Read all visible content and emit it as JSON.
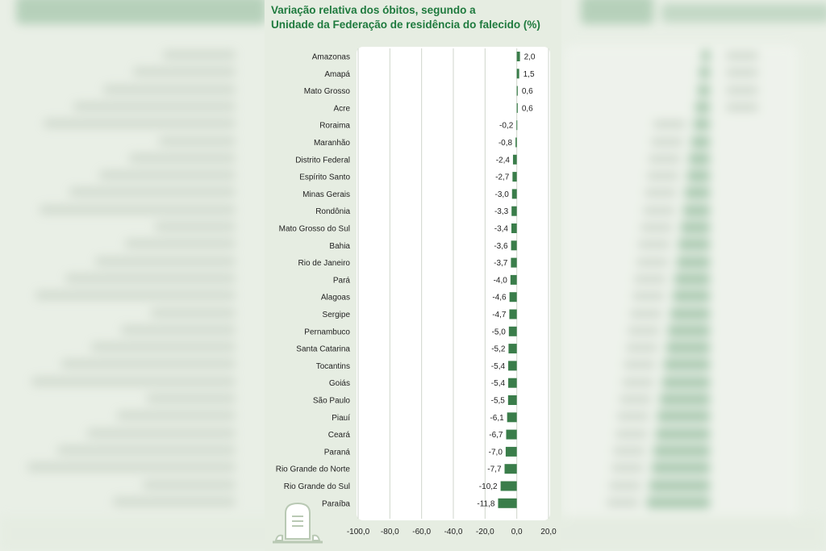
{
  "chart_data": {
    "type": "bar",
    "orientation": "horizontal",
    "title": "Variação relativa dos óbitos, segundo a Unidade da Federação de residência do falecido (%)",
    "title_lines": [
      "Variação relativa dos óbitos, segundo a",
      "Unidade da Federação de residência do falecido (%)"
    ],
    "categories": [
      "Amazonas",
      "Amapá",
      "Mato Grosso",
      "Acre",
      "Roraima",
      "Maranhão",
      "Distrito Federal",
      "Espírito Santo",
      "Minas Gerais",
      "Rondônia",
      "Mato Grosso do Sul",
      "Bahia",
      "Rio de Janeiro",
      "Pará",
      "Alagoas",
      "Sergipe",
      "Pernambuco",
      "Santa Catarina",
      "Tocantins",
      "Goiás",
      "São Paulo",
      "Piauí",
      "Ceará",
      "Paraná",
      "Rio Grande do Norte",
      "Rio Grande do Sul",
      "Paraíba"
    ],
    "values": [
      2.0,
      1.5,
      0.6,
      0.6,
      -0.2,
      -0.8,
      -2.4,
      -2.7,
      -3.0,
      -3.3,
      -3.4,
      -3.6,
      -3.7,
      -4.0,
      -4.6,
      -4.7,
      -5.0,
      -5.2,
      -5.4,
      -5.4,
      -5.5,
      -6.1,
      -6.7,
      -7.0,
      -7.7,
      -10.2,
      -11.8
    ],
    "value_labels": [
      "2,0",
      "1,5",
      "0,6",
      "0,6",
      "-0,2",
      "-0,8",
      "-2,4",
      "-2,7",
      "-3,0",
      "-3,3",
      "-3,4",
      "-3,6",
      "-3,7",
      "-4,0",
      "-4,6",
      "-4,7",
      "-5,0",
      "-5,2",
      "-5,4",
      "-5,4",
      "-5,5",
      "-6,1",
      "-6,7",
      "-7,0",
      "-7,7",
      "-10,2",
      "-11,8"
    ],
    "xlim": [
      -100,
      20
    ],
    "xticks": [
      -100,
      -80,
      -60,
      -40,
      -20,
      0,
      20
    ],
    "xtick_labels": [
      "-100,0",
      "-80,0",
      "-60,0",
      "-40,0",
      "-20,0",
      "0,0",
      "20,0"
    ],
    "grid": true,
    "legend": "none",
    "colors": {
      "bar": "#3a7d4a",
      "title": "#1f7a3e",
      "grid": "#cfd6cc"
    }
  },
  "decor": {
    "icon": "tombstone-icon"
  }
}
